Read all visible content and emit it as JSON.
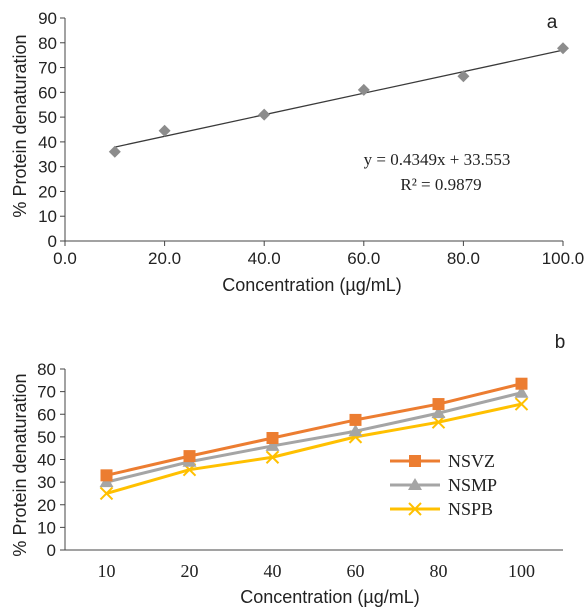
{
  "chart_data": [
    {
      "panel_label": "a",
      "type": "scatter",
      "title": "",
      "xlabel": "Concentration (µg/mL)",
      "ylabel": "% Protein denaturation",
      "xlim": [
        0,
        100
      ],
      "ylim": [
        0,
        90
      ],
      "x_ticks": [
        "0.0",
        "20.0",
        "40.0",
        "60.0",
        "80.0",
        "100.0"
      ],
      "y_ticks": [
        "0",
        "10",
        "20",
        "30",
        "40",
        "50",
        "60",
        "70",
        "80",
        "90"
      ],
      "grid": false,
      "points": [
        {
          "x": 10,
          "y": 36
        },
        {
          "x": 20,
          "y": 44.5
        },
        {
          "x": 40,
          "y": 51
        },
        {
          "x": 60,
          "y": 61
        },
        {
          "x": 80,
          "y": 66.5
        },
        {
          "x": 100,
          "y": 77.8
        }
      ],
      "trendline": {
        "slope": 0.4349,
        "intercept": 33.553,
        "x_range": [
          10,
          100
        ]
      },
      "equation_text": "y = 0.4349x + 33.553",
      "r2_text": "R² = 0.9879",
      "marker_color": "#8c8c8c",
      "line_color": "#3a3a3a"
    },
    {
      "panel_label": "b",
      "type": "line",
      "title": "",
      "xlabel": "Concentration (µg/mL)",
      "ylabel": "% Protein denaturation",
      "categories": [
        "10",
        "20",
        "40",
        "60",
        "80",
        "100"
      ],
      "ylim": [
        0,
        80
      ],
      "y_ticks": [
        "0",
        "10",
        "20",
        "30",
        "40",
        "50",
        "60",
        "70",
        "80"
      ],
      "grid": false,
      "legend_position": "bottom-right",
      "series": [
        {
          "name": "NSVZ",
          "values": [
            33,
            41.5,
            49.5,
            57.5,
            64.5,
            73.5
          ],
          "color": "#ec7d31",
          "marker": "square"
        },
        {
          "name": "NSMP",
          "values": [
            30,
            39,
            46,
            52.5,
            60.5,
            69.5
          ],
          "color": "#a5a5a5",
          "marker": "triangle"
        },
        {
          "name": "NSPB",
          "values": [
            25,
            35.5,
            41,
            50,
            56.5,
            64.5
          ],
          "color": "#ffc000",
          "marker": "x"
        }
      ]
    }
  ]
}
